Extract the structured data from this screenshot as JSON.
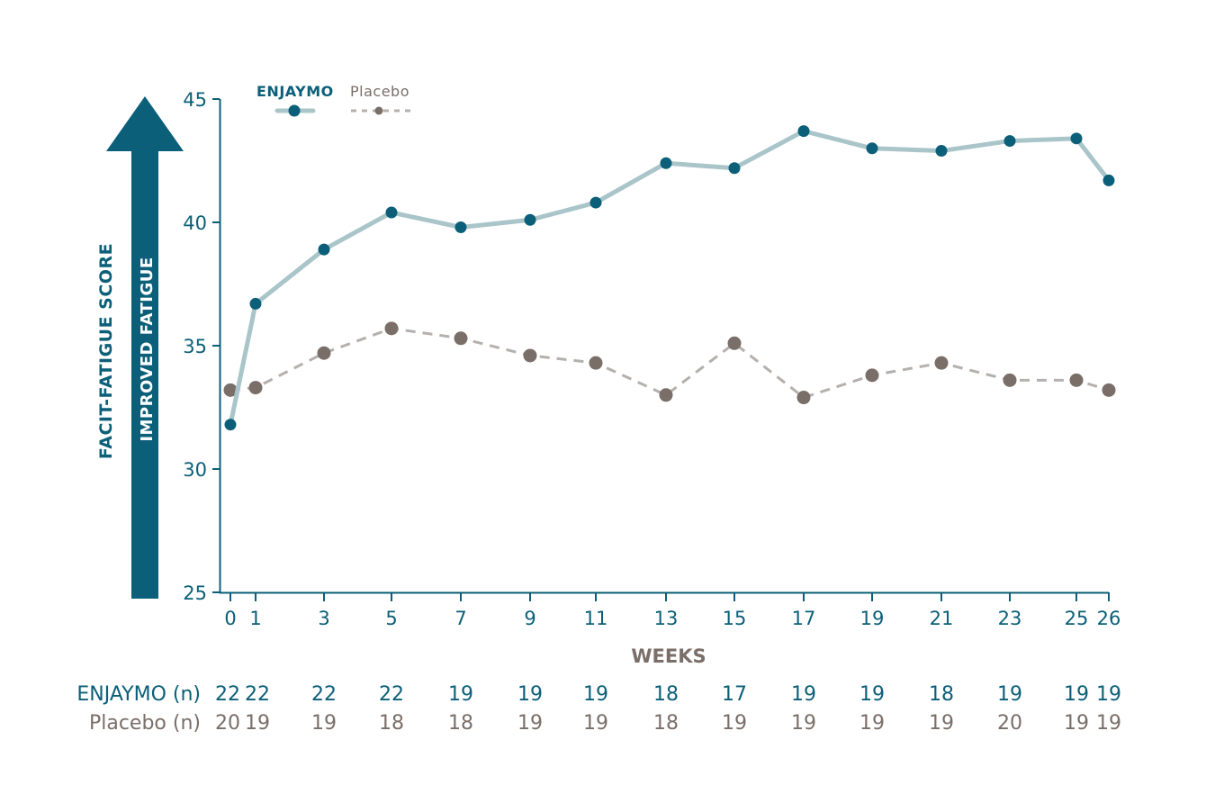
{
  "chart_data": {
    "type": "line",
    "xlabel": "WEEKS",
    "ylabel": "FACIT-FATIGUE SCORE",
    "arrow_label": "IMPROVED FATIGUE",
    "ylim": [
      25,
      45
    ],
    "yticks": [
      25,
      30,
      35,
      40,
      45
    ],
    "x": [
      0,
      1,
      3,
      5,
      7,
      9,
      11,
      13,
      15,
      17,
      19,
      21,
      23,
      25,
      26
    ],
    "series": [
      {
        "name": "ENJAYMO",
        "color": "#0b5f78",
        "line_color": "#a9c5c9",
        "style": "solid",
        "values": [
          31.8,
          36.7,
          38.9,
          40.4,
          39.8,
          40.1,
          40.8,
          42.4,
          42.2,
          43.7,
          43.0,
          42.9,
          43.3,
          43.4,
          41.7
        ]
      },
      {
        "name": "Placebo",
        "color": "#7a6e68",
        "line_color": "#b5b0ad",
        "style": "dashed",
        "values": [
          33.2,
          33.3,
          34.7,
          35.7,
          35.3,
          34.6,
          34.3,
          33.0,
          35.1,
          32.9,
          33.8,
          34.3,
          33.6,
          33.6,
          33.2
        ]
      }
    ],
    "n_table": {
      "rows": [
        {
          "label": "ENJAYMO (n)",
          "values": [
            "22",
            "22",
            "22",
            "22",
            "19",
            "19",
            "19",
            "18",
            "17",
            "19",
            "19",
            "18",
            "19",
            "19",
            "19"
          ]
        },
        {
          "label": "Placebo (n)",
          "values": [
            "20",
            "19",
            "19",
            "18",
            "18",
            "19",
            "19",
            "18",
            "19",
            "19",
            "19",
            "19",
            "20",
            "19",
            "19"
          ]
        }
      ]
    }
  }
}
